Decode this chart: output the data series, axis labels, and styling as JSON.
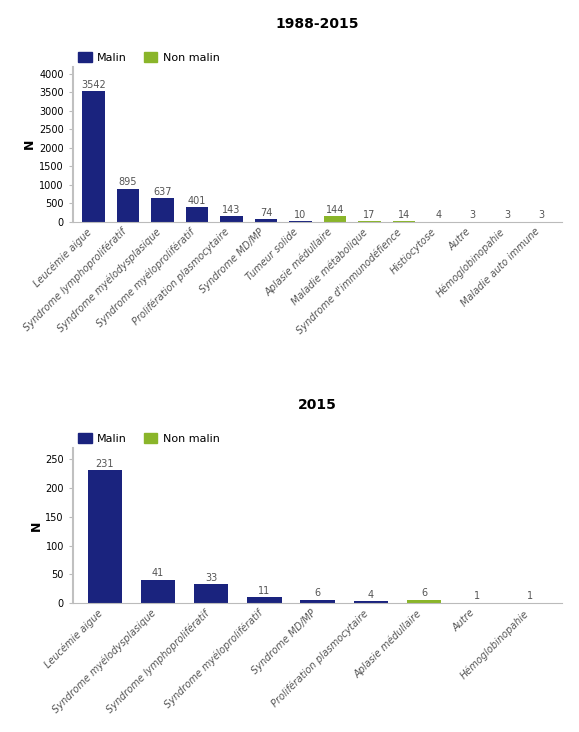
{
  "chart1": {
    "title": "1988-2015",
    "categories": [
      "Leucémie aigue",
      "Syndrome lymphoprolifératif",
      "Syndrome myélodysplasique",
      "Syndrome myéloprolifératif",
      "Prolifération plasmocytaire",
      "Syndrome MD/MP",
      "Tumeur solide",
      "Aplasie médullaire",
      "Maladie métabolique",
      "Syndrome d'immunodéfience",
      "Histiocytose",
      "Autre",
      "Hémoglobinopahie",
      "Maladie auto immune"
    ],
    "values": [
      3542,
      895,
      637,
      401,
      143,
      74,
      10,
      144,
      17,
      14,
      4,
      3,
      3,
      3
    ],
    "colors": [
      "#1a237e",
      "#1a237e",
      "#1a237e",
      "#1a237e",
      "#1a237e",
      "#1a237e",
      "#1a237e",
      "#8ab52a",
      "#8ab52a",
      "#8ab52a",
      "#8ab52a",
      "#8ab52a",
      "#8ab52a",
      "#8ab52a"
    ],
    "ylabel": "N",
    "ylim": [
      0,
      4200
    ],
    "yticks": [
      0,
      500,
      1000,
      1500,
      2000,
      2500,
      3000,
      3500,
      4000
    ]
  },
  "chart2": {
    "title": "2015",
    "categories": [
      "Leucémie aigue",
      "Syndrome myélodysplasique",
      "Syndrome lymphoprolifératif",
      "Syndrome myéloprolifératif",
      "Syndrome MD/MP",
      "Prolifération plasmocytaire",
      "Aplasie médullaire",
      "Autre",
      "Hémoglobinopahie"
    ],
    "values": [
      231,
      41,
      33,
      11,
      6,
      4,
      6,
      1,
      1
    ],
    "colors": [
      "#1a237e",
      "#1a237e",
      "#1a237e",
      "#1a237e",
      "#1a237e",
      "#1a237e",
      "#8ab52a",
      "#8ab52a",
      "#8ab52a"
    ],
    "ylabel": "N",
    "ylim": [
      0,
      270
    ],
    "yticks": [
      0,
      50,
      100,
      150,
      200,
      250
    ]
  },
  "legend_malin_color": "#1a237e",
  "legend_non_malin_color": "#8ab52a",
  "legend_malin_label": "Malin",
  "legend_non_malin_label": "Non malin",
  "bar_edge_color": "none",
  "value_label_fontsize": 7,
  "axis_label_fontsize": 9,
  "title_fontsize": 10,
  "tick_fontsize": 7,
  "legend_fontsize": 8,
  "background_color": "#ffffff",
  "plot_bg_color": "#ffffff",
  "spine_color": "#bbbbbb",
  "left_spine_color": "#c0c0c0"
}
